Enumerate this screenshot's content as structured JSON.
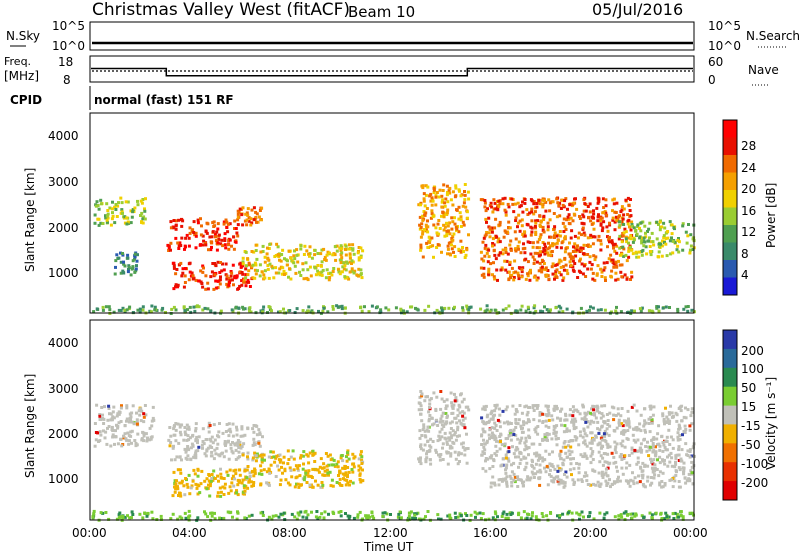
{
  "header": {
    "title": "Christmas Valley West (fitACF)",
    "beam": "Beam 10",
    "date": "05/Jul/2016"
  },
  "strips": {
    "nsky_label": "N.Sky",
    "nsky_ticks": [
      "10^5",
      "10^0"
    ],
    "nsearch_label": "N.Search",
    "nsearch_ticks": [
      "10^5",
      "10^0"
    ],
    "freq_label_1": "Freq.",
    "freq_label_2": "[MHz]",
    "freq_ticks": [
      "18",
      "8"
    ],
    "nave_label": "Nave",
    "nave_ticks": [
      "60",
      "0"
    ],
    "cpid_label": "CPID",
    "cpid_text": "normal (fast) 151 RF"
  },
  "panels": {
    "power": {
      "ylabel": "Slant Range [km]",
      "yticks": [
        "4000",
        "3000",
        "2000",
        "1000"
      ],
      "colorbar_label": "Power [dB]",
      "colorbar_ticks": [
        "28",
        "24",
        "20",
        "16",
        "12",
        "8",
        "4"
      ]
    },
    "velocity": {
      "ylabel": "Slant Range [km]",
      "yticks": [
        "4000",
        "3000",
        "2000",
        "1000"
      ],
      "colorbar_label": "Velocity [m s⁻¹]",
      "colorbar_ticks": [
        "200",
        "100",
        "50",
        "15",
        "-15",
        "-50",
        "-100",
        "-200"
      ]
    }
  },
  "xaxis": {
    "label": "Time UT",
    "ticks": [
      "00:00",
      "04:00",
      "08:00",
      "12:00",
      "16:00",
      "20:00",
      "00:00"
    ]
  },
  "colors": {
    "power_scale": [
      "#1a1ad6",
      "#2a5ab0",
      "#3a8a6a",
      "#4f9f50",
      "#9acd32",
      "#f0d000",
      "#f5a000",
      "#f06a00",
      "#e81000",
      "#ff0000"
    ],
    "velocity_scale": [
      "#2a3aa8",
      "#2a6a9a",
      "#2a8a50",
      "#7acd32",
      "#c0c0b8",
      "#f0b000",
      "#f07000",
      "#e83000",
      "#e00000"
    ],
    "ground_scatter": "#c0c0b8"
  },
  "chart_data": {
    "type": "heatmap",
    "x_unit": "hours UT",
    "y_unit": "km",
    "xlim": [
      0,
      24
    ],
    "ylim": [
      180,
      4500
    ],
    "freq_series": {
      "name": "Freq.",
      "x": [
        0,
        3,
        3,
        15,
        15,
        24
      ],
      "y": [
        13.2,
        13.2,
        10.4,
        10.4,
        13.2,
        13.2
      ]
    },
    "power_regions": [
      {
        "t0": 0.1,
        "t1": 2.2,
        "r0": 2100,
        "r1": 2700,
        "db": 14
      },
      {
        "t0": 0.8,
        "t1": 1.8,
        "r0": 1000,
        "r1": 1500,
        "db": 8
      },
      {
        "t0": 3.0,
        "t1": 5.8,
        "r0": 1550,
        "r1": 2250,
        "db": 28
      },
      {
        "t0": 5.8,
        "t1": 6.8,
        "r0": 2100,
        "r1": 2500,
        "db": 24
      },
      {
        "t0": 3.2,
        "t1": 6.4,
        "r0": 700,
        "r1": 1300,
        "db": 28
      },
      {
        "t0": 6.0,
        "t1": 10.8,
        "r0": 900,
        "r1": 1700,
        "db": 18
      },
      {
        "t0": 13.0,
        "t1": 15.0,
        "r0": 1400,
        "r1": 3000,
        "db": 22
      },
      {
        "t0": 15.5,
        "t1": 21.5,
        "r0": 900,
        "r1": 2700,
        "db": 24
      },
      {
        "t0": 21.0,
        "t1": 24.0,
        "r0": 1400,
        "r1": 2200,
        "db": 14
      },
      {
        "t0": 0,
        "t1": 24,
        "r0": 180,
        "r1": 350,
        "db": 10
      }
    ],
    "velocity_regions": [
      {
        "t0": 0.1,
        "t1": 2.5,
        "r0": 1800,
        "r1": 2700,
        "vel": 0
      },
      {
        "t0": 3.0,
        "t1": 6.8,
        "r0": 1500,
        "r1": 2300,
        "vel": 0
      },
      {
        "t0": 3.2,
        "t1": 6.4,
        "r0": 700,
        "r1": 1300,
        "vel": -50
      },
      {
        "t0": 6.0,
        "t1": 10.8,
        "r0": 900,
        "r1": 1700,
        "vel": -30
      },
      {
        "t0": 13.0,
        "t1": 15.0,
        "r0": 1400,
        "r1": 3000,
        "vel": 0
      },
      {
        "t0": 15.5,
        "t1": 24.0,
        "r0": 900,
        "r1": 2700,
        "vel": 0
      },
      {
        "t0": 0,
        "t1": 24,
        "r0": 180,
        "r1": 380,
        "vel": 30
      }
    ]
  }
}
